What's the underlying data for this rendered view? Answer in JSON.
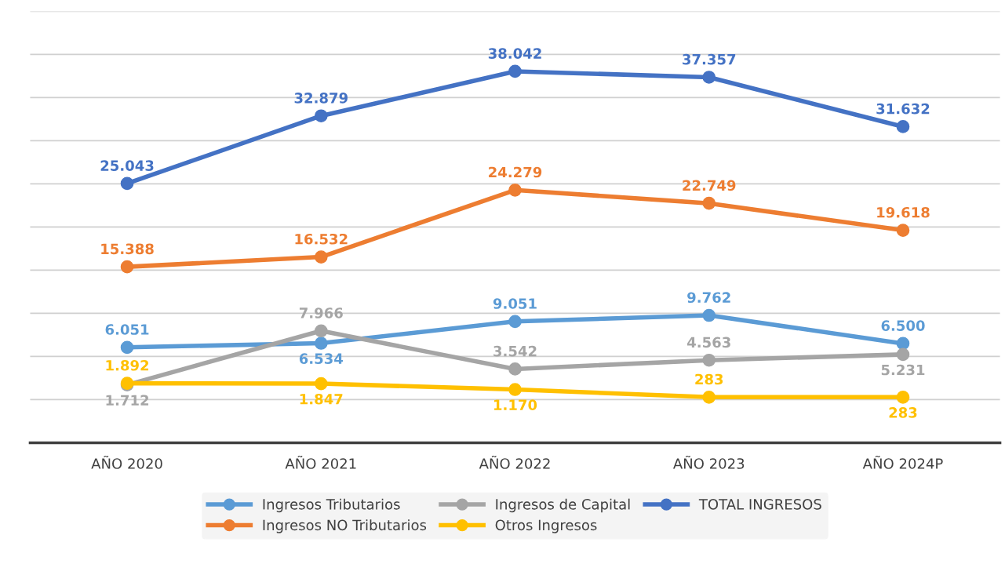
{
  "chart_data": {
    "type": "line",
    "categories": [
      "AÑO 2020",
      "AÑO 2021",
      "AÑO 2022",
      "AÑO 2023",
      "AÑO 2024P"
    ],
    "series": [
      {
        "name": "Ingresos Tributarios",
        "color": "#5b9bd5",
        "values": [
          6051,
          6534,
          9051,
          9762,
          6500
        ],
        "value_labels": [
          "6.051",
          "6.534",
          "9.051",
          "9.762",
          "6.500"
        ]
      },
      {
        "name": "Ingresos NO Tributarios",
        "color": "#ed7d31",
        "values": [
          15388,
          16532,
          24279,
          22749,
          19618
        ],
        "value_labels": [
          "15.388",
          "16.532",
          "24.279",
          "22.749",
          "19.618"
        ]
      },
      {
        "name": "Ingresos de Capital",
        "color": "#a5a5a5",
        "values": [
          1712,
          7966,
          3542,
          4563,
          5231
        ],
        "value_labels": [
          "1.712",
          "7.966",
          "3.542",
          "4.563",
          "5.231"
        ]
      },
      {
        "name": "Otros Ingresos",
        "color": "#ffc000",
        "values": [
          1892,
          1847,
          1170,
          283,
          283
        ],
        "value_labels": [
          "1.892",
          "1.847",
          "1.170",
          "283",
          "283"
        ]
      },
      {
        "name": "TOTAL INGRESOS",
        "color": "#4472c4",
        "values": [
          25043,
          32879,
          38042,
          37357,
          31632
        ],
        "value_labels": [
          "25.043",
          "32.879",
          "38.042",
          "37.357",
          "31.632"
        ]
      }
    ],
    "tick_labels": "x",
    "grid": "y",
    "legend": "bottom",
    "marker": "circle",
    "line_style": "solid"
  }
}
